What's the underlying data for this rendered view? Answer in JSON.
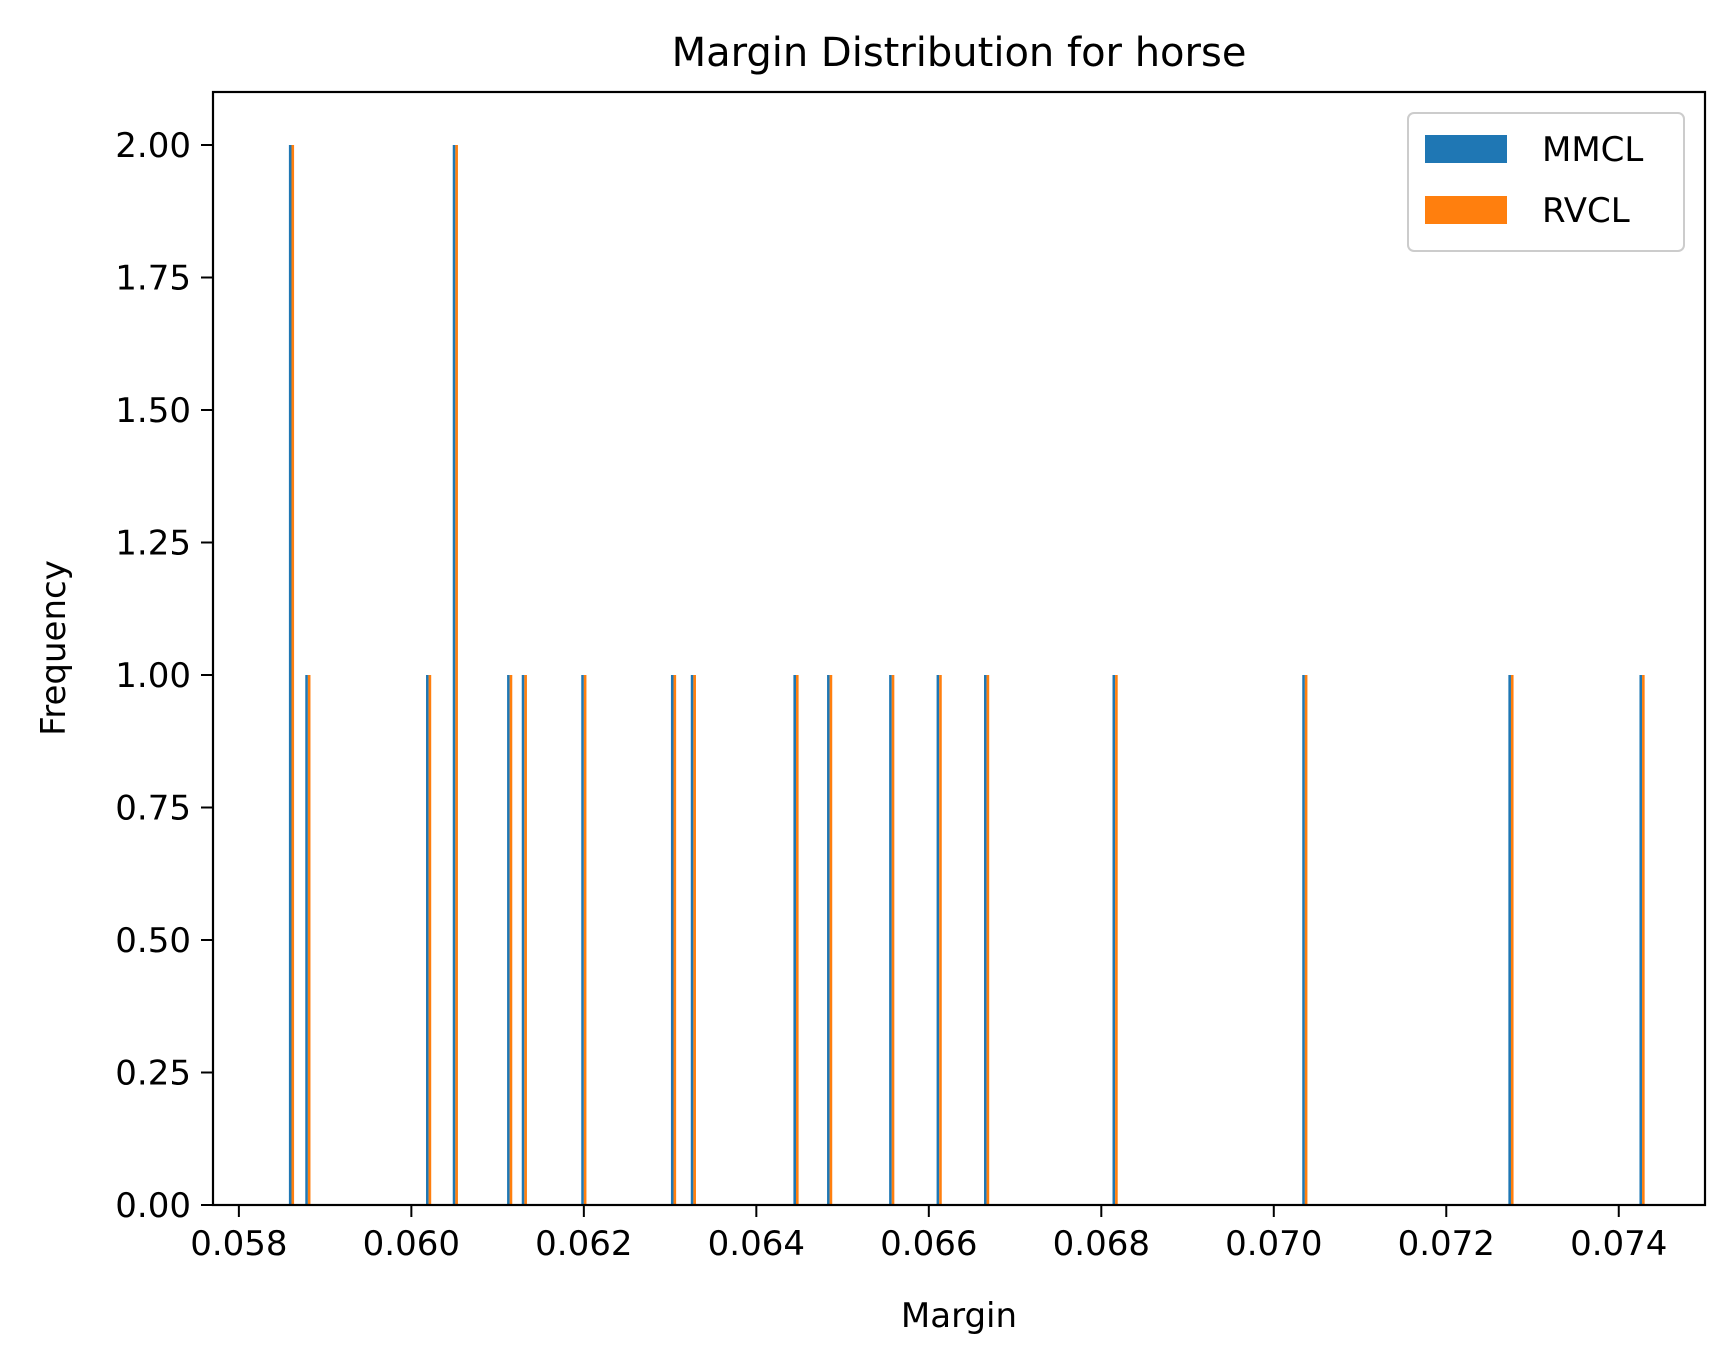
{
  "chart_data": {
    "type": "bar",
    "title": "Margin Distribution for horse",
    "xlabel": "Margin",
    "ylabel": "Frequency",
    "xlim": [
      0.0577,
      0.075
    ],
    "ylim": [
      0,
      2.1
    ],
    "grid": false,
    "legend_position": "top-right",
    "x_ticks": [
      0.058,
      0.06,
      0.062,
      0.064,
      0.066,
      0.068,
      0.07,
      0.072,
      0.074
    ],
    "x_tick_labels": [
      "0.058",
      "0.060",
      "0.062",
      "0.064",
      "0.066",
      "0.068",
      "0.070",
      "0.072",
      "0.074"
    ],
    "y_ticks": [
      0,
      0.25,
      0.5,
      0.75,
      1.0,
      1.25,
      1.5,
      1.75,
      2.0
    ],
    "y_tick_labels": [
      "0.00",
      "0.25",
      "0.50",
      "0.75",
      "1.00",
      "1.25",
      "1.50",
      "1.75",
      "2.00"
    ],
    "bar_width": 3e-05,
    "series": [
      {
        "name": "MMCL",
        "color": "#1f77b4",
        "points": [
          {
            "x": 0.05858,
            "y": 2
          },
          {
            "x": 0.05877,
            "y": 1
          },
          {
            "x": 0.06017,
            "y": 1
          },
          {
            "x": 0.06048,
            "y": 2
          },
          {
            "x": 0.06111,
            "y": 1
          },
          {
            "x": 0.06128,
            "y": 1
          },
          {
            "x": 0.06197,
            "y": 1
          },
          {
            "x": 0.06301,
            "y": 1
          },
          {
            "x": 0.06324,
            "y": 1
          },
          {
            "x": 0.06443,
            "y": 1
          },
          {
            "x": 0.06482,
            "y": 1
          },
          {
            "x": 0.06554,
            "y": 1
          },
          {
            "x": 0.06609,
            "y": 1
          },
          {
            "x": 0.06664,
            "y": 1
          },
          {
            "x": 0.06813,
            "y": 1
          },
          {
            "x": 0.07033,
            "y": 1
          },
          {
            "x": 0.07272,
            "y": 1
          },
          {
            "x": 0.07424,
            "y": 1
          }
        ]
      },
      {
        "name": "RVCL",
        "color": "#ff7f0e",
        "points": [
          {
            "x": 0.05861,
            "y": 2
          },
          {
            "x": 0.0588,
            "y": 1
          },
          {
            "x": 0.0602,
            "y": 1
          },
          {
            "x": 0.06051,
            "y": 2
          },
          {
            "x": 0.06114,
            "y": 1
          },
          {
            "x": 0.06131,
            "y": 1
          },
          {
            "x": 0.062,
            "y": 1
          },
          {
            "x": 0.06304,
            "y": 1
          },
          {
            "x": 0.06327,
            "y": 1
          },
          {
            "x": 0.06446,
            "y": 1
          },
          {
            "x": 0.06485,
            "y": 1
          },
          {
            "x": 0.06557,
            "y": 1
          },
          {
            "x": 0.06612,
            "y": 1
          },
          {
            "x": 0.06667,
            "y": 1
          },
          {
            "x": 0.06816,
            "y": 1
          },
          {
            "x": 0.07036,
            "y": 1
          },
          {
            "x": 0.07275,
            "y": 1
          },
          {
            "x": 0.07427,
            "y": 1
          }
        ]
      }
    ]
  }
}
